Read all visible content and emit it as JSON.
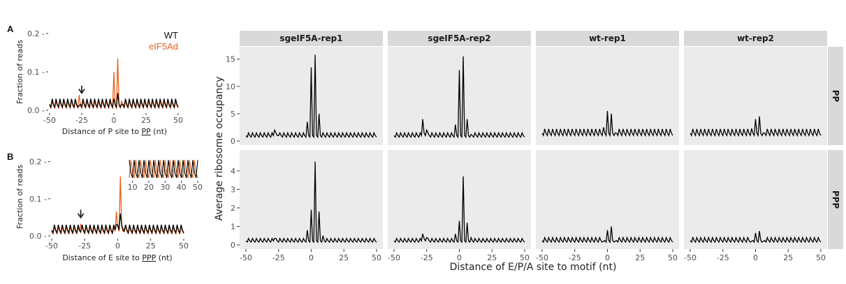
{
  "colors": {
    "wt": "#000000",
    "eif5ad": "#e8601c",
    "panel_bg": "#ebebeb",
    "strip_bg": "#d9d9d9"
  },
  "chart_data": [
    {
      "id": "A",
      "type": "line",
      "panel_letter": "A",
      "xlabel": "Distance of P site to PP (nt)",
      "xlabel_parts": [
        "Distance of P site to ",
        "PP",
        " (nt)"
      ],
      "ylabel": "Fraction of reads",
      "xlim": [
        -50,
        50
      ],
      "ylim": [
        0,
        0.2
      ],
      "xticks": [
        -50,
        -25,
        0,
        25,
        50
      ],
      "yticks": [
        0.0,
        0.1,
        0.2
      ],
      "ytick_labels": [
        "0.0",
        "0.1",
        "0.2"
      ],
      "legend": [
        "WT",
        "eIF5Ad"
      ],
      "legend_placement": "top-right",
      "arrow_x": -25,
      "series": [
        {
          "name": "WT",
          "color": "#000000",
          "base": 0.008,
          "amp": 0.022,
          "spikes": [
            [
              -27,
              0.012
            ],
            [
              0,
              0.03
            ],
            [
              3,
              0.045
            ],
            [
              6,
              0.015
            ]
          ]
        },
        {
          "name": "eIF5Ad",
          "color": "#e8601c",
          "base": 0.006,
          "amp": 0.018,
          "spikes": [
            [
              -27,
              0.04
            ],
            [
              0,
              0.1
            ],
            [
              3,
              0.135
            ],
            [
              6,
              0.025
            ]
          ]
        }
      ]
    },
    {
      "id": "B",
      "type": "line",
      "panel_letter": "B",
      "xlabel": "Distance of E site to PPP (nt)",
      "xlabel_parts": [
        "Distance of E site to ",
        "PPP",
        " (nt)"
      ],
      "ylabel": "Fraction of reads",
      "xlim": [
        -50,
        50
      ],
      "ylim": [
        0,
        0.22
      ],
      "xticks": [
        -50,
        -25,
        0,
        25,
        50
      ],
      "yticks": [
        0.0,
        0.1,
        0.2
      ],
      "ytick_labels": [
        "0.0",
        "0.1",
        "0.2"
      ],
      "arrow_x": -28,
      "inset": {
        "xlim": [
          8,
          50
        ],
        "xticks": [
          10,
          20,
          30,
          40,
          50
        ]
      },
      "series": [
        {
          "name": "WT",
          "color": "#000000",
          "base": 0.008,
          "amp": 0.022,
          "spikes": [
            [
              -28,
              0.01
            ],
            [
              -1,
              0.03
            ],
            [
              2,
              0.06
            ],
            [
              5,
              0.012
            ]
          ]
        },
        {
          "name": "eIF5Ad",
          "color": "#e8601c",
          "base": 0.006,
          "amp": 0.018,
          "spikes": [
            [
              -28,
              0.03
            ],
            [
              -1,
              0.065
            ],
            [
              2,
              0.16
            ],
            [
              5,
              0.02
            ]
          ]
        }
      ]
    },
    {
      "id": "C",
      "type": "line",
      "xlabel": "Distance of E/P/A site to motif (nt)",
      "ylabel": "Average ribosome occupancy",
      "xlim": [
        -50,
        50
      ],
      "xticks": [
        -50,
        -25,
        0,
        25,
        50
      ],
      "columns": [
        "sgeIF5A-rep1",
        "sgeIF5A-rep2",
        "wt-rep1",
        "wt-rep2"
      ],
      "rows": [
        {
          "label": "PP",
          "ylim": [
            0,
            16.5
          ],
          "yticks": [
            0,
            5,
            10,
            15
          ]
        },
        {
          "label": "PPP",
          "ylim": [
            0,
            4.9
          ],
          "yticks": [
            0,
            1,
            2,
            3,
            4
          ]
        }
      ],
      "panels": [
        {
          "row": "PP",
          "col": "sgeIF5A-rep1",
          "base": 0.7,
          "amp": 0.8,
          "spikes": [
            [
              -28,
              2.0
            ],
            [
              -25,
              1.0
            ],
            [
              -3,
              3.5
            ],
            [
              0,
              13.5
            ],
            [
              3,
              15.8
            ],
            [
              6,
              5.0
            ],
            [
              9,
              1.5
            ]
          ]
        },
        {
          "row": "PP",
          "col": "sgeIF5A-rep2",
          "base": 0.7,
          "amp": 0.8,
          "spikes": [
            [
              -28,
              4.0
            ],
            [
              -25,
              2.0
            ],
            [
              -3,
              3.0
            ],
            [
              0,
              13.0
            ],
            [
              3,
              15.5
            ],
            [
              6,
              4.0
            ],
            [
              9,
              1.2
            ]
          ]
        },
        {
          "row": "PP",
          "col": "wt-rep1",
          "base": 1.0,
          "amp": 1.2,
          "spikes": [
            [
              -3,
              2.5
            ],
            [
              0,
              5.5
            ],
            [
              3,
              5.0
            ],
            [
              6,
              1.5
            ]
          ]
        },
        {
          "row": "PP",
          "col": "wt-rep2",
          "base": 1.0,
          "amp": 1.2,
          "spikes": [
            [
              -3,
              2.3
            ],
            [
              0,
              4.0
            ],
            [
              3,
              4.5
            ],
            [
              6,
              1.5
            ]
          ]
        },
        {
          "row": "PPP",
          "col": "sgeIF5A-rep1",
          "base": 0.15,
          "amp": 0.2,
          "spikes": [
            [
              -28,
              0.35
            ],
            [
              -3,
              0.8
            ],
            [
              0,
              1.9
            ],
            [
              3,
              4.5
            ],
            [
              6,
              1.8
            ],
            [
              9,
              0.5
            ]
          ]
        },
        {
          "row": "PPP",
          "col": "sgeIF5A-rep2",
          "base": 0.15,
          "amp": 0.2,
          "spikes": [
            [
              -28,
              0.6
            ],
            [
              -25,
              0.4
            ],
            [
              -3,
              0.6
            ],
            [
              0,
              1.3
            ],
            [
              3,
              3.7
            ],
            [
              6,
              1.2
            ],
            [
              9,
              0.4
            ]
          ]
        },
        {
          "row": "PPP",
          "col": "wt-rep1",
          "base": 0.15,
          "amp": 0.25,
          "spikes": [
            [
              -3,
              0.2
            ],
            [
              0,
              0.8
            ],
            [
              3,
              1.0
            ],
            [
              6,
              0.2
            ]
          ]
        },
        {
          "row": "PPP",
          "col": "wt-rep2",
          "base": 0.15,
          "amp": 0.25,
          "spikes": [
            [
              -3,
              0.2
            ],
            [
              0,
              0.65
            ],
            [
              3,
              0.75
            ],
            [
              6,
              0.2
            ]
          ]
        }
      ]
    }
  ]
}
